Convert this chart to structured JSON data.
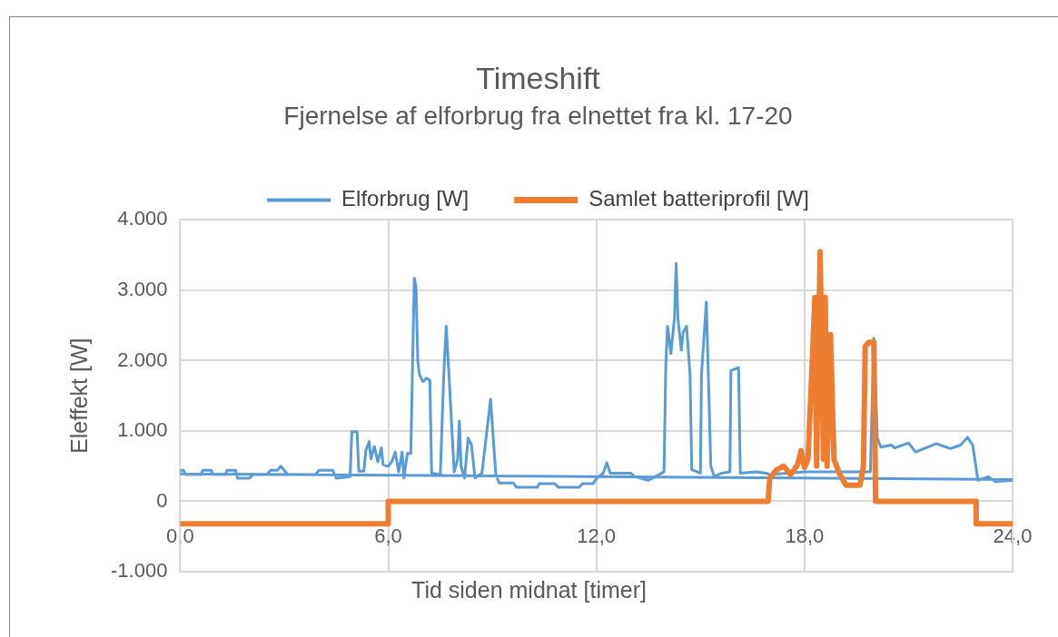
{
  "chart_data": {
    "type": "line",
    "title": "Timeshift",
    "subtitle": "Fjernelse af elforbrug fra elnettet fra kl. 17-20",
    "xlabel": "Tid siden midnat [timer]",
    "ylabel": "Eleffekt [W]",
    "xlim": [
      0,
      24
    ],
    "xticks": [
      {
        "value": 0,
        "label": "0,0"
      },
      {
        "value": 6,
        "label": "6,0"
      },
      {
        "value": 12,
        "label": "12,0"
      },
      {
        "value": 18,
        "label": "18,0"
      },
      {
        "value": 24,
        "label": "24,0"
      }
    ],
    "ylim": [
      -1000,
      4000
    ],
    "yticks": [
      {
        "value": -1000,
        "label": "-1.000"
      },
      {
        "value": 0,
        "label": "0"
      },
      {
        "value": 1000,
        "label": "1.000"
      },
      {
        "value": 2000,
        "label": "2.000"
      },
      {
        "value": 3000,
        "label": "3.000"
      },
      {
        "value": 4000,
        "label": "4.000"
      }
    ],
    "grid": true,
    "legend": "top",
    "marker": "none",
    "line_style": "solid",
    "series": [
      {
        "name": "Elforbrug [W]",
        "color": "#5b9bd5",
        "x": [
          24,
          0,
          0,
          0.1,
          0.15,
          0.6,
          0.65,
          0.9,
          0.95,
          1.3,
          1.35,
          1.6,
          1.65,
          2.0,
          2.1,
          2.5,
          2.6,
          2.8,
          2.9,
          3.0,
          3.1,
          3.9,
          4.0,
          4.4,
          4.5,
          4.9,
          4.95,
          5.1,
          5.15,
          5.3,
          5.35,
          5.45,
          5.5,
          5.6,
          5.7,
          5.8,
          5.85,
          6.0,
          6.1,
          6.2,
          6.3,
          6.4,
          6.45,
          6.55,
          6.65,
          6.75,
          6.8,
          6.85,
          6.9,
          7.0,
          7.1,
          7.2,
          7.25,
          7.5,
          7.6,
          7.67,
          7.75,
          7.9,
          8.0,
          8.05,
          8.1,
          8.2,
          8.3,
          8.4,
          8.5,
          8.7,
          8.95,
          9.1,
          9.2,
          9.6,
          9.7,
          10.3,
          10.35,
          10.8,
          10.9,
          11.5,
          11.6,
          11.9,
          12.0,
          12.2,
          12.3,
          12.4,
          13.0,
          13.1,
          13.5,
          13.7,
          13.95,
          14.0,
          14.05,
          14.15,
          14.25,
          14.3,
          14.35,
          14.45,
          14.5,
          14.6,
          14.7,
          14.75,
          15.0,
          15.03,
          15.17,
          15.3,
          15.4,
          15.6,
          15.85,
          15.88,
          16.1,
          16.15,
          16.6,
          16.9,
          17.0,
          18.0,
          19.9,
          20.0,
          20.1,
          20.2,
          20.5,
          20.6,
          21.0,
          21.2,
          21.5,
          21.8,
          22.2,
          22.5,
          22.7,
          22.85,
          23.0,
          23.3,
          23.5,
          24.0
        ],
        "values": [
          310,
          390,
          440,
          440,
          380,
          380,
          440,
          440,
          380,
          380,
          440,
          440,
          330,
          330,
          380,
          380,
          440,
          440,
          500,
          440,
          380,
          380,
          440,
          440,
          330,
          350,
          990,
          990,
          430,
          430,
          720,
          850,
          600,
          780,
          560,
          760,
          520,
          500,
          560,
          700,
          420,
          700,
          330,
          680,
          680,
          3170,
          3050,
          2000,
          1800,
          1700,
          1750,
          1720,
          400,
          380,
          1800,
          2490,
          1800,
          420,
          600,
          1140,
          500,
          330,
          900,
          800,
          330,
          400,
          1450,
          380,
          260,
          260,
          200,
          200,
          250,
          250,
          200,
          200,
          250,
          250,
          320,
          400,
          550,
          400,
          400,
          350,
          300,
          350,
          420,
          1900,
          2490,
          2100,
          2600,
          3380,
          2600,
          2150,
          2400,
          2490,
          1800,
          450,
          400,
          1800,
          2830,
          500,
          350,
          400,
          420,
          1860,
          1900,
          400,
          420,
          400,
          380,
          420,
          420,
          2320,
          900,
          770,
          800,
          760,
          830,
          700,
          760,
          820,
          750,
          800,
          910,
          800,
          300,
          350,
          280,
          300
        ]
      },
      {
        "name": "Samlet batteriprofil [W]",
        "color": "#ed7d31",
        "x": [
          0,
          6,
          6,
          16.95,
          17.0,
          17.2,
          17.4,
          17.6,
          17.8,
          17.9,
          18.0,
          18.1,
          18.2,
          18.3,
          18.35,
          18.45,
          18.55,
          18.6,
          18.65,
          18.75,
          18.85,
          19.0,
          19.2,
          19.6,
          19.7,
          19.75,
          19.85,
          20.0,
          20.05,
          22.95,
          22.95,
          24
        ],
        "values": [
          -320,
          -320,
          0,
          0,
          330,
          450,
          500,
          380,
          520,
          720,
          480,
          600,
          1700,
          2900,
          500,
          3550,
          600,
          2900,
          500,
          2370,
          600,
          400,
          230,
          230,
          500,
          2200,
          2260,
          2260,
          0,
          0,
          -320,
          -320
        ]
      }
    ]
  }
}
